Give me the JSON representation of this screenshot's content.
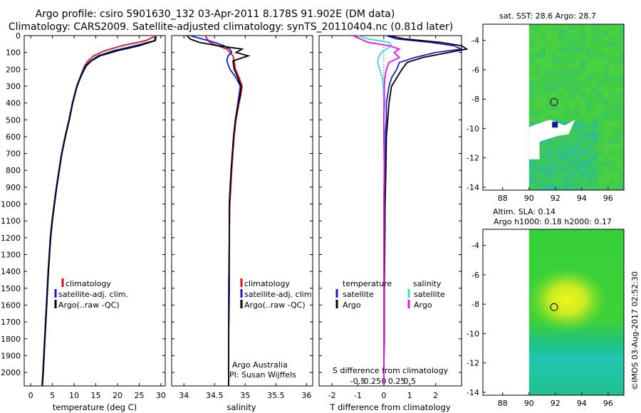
{
  "header": {
    "title_line1": "Argo profile: csiro 5901630_132 03-Apr-2011 8.178S 91.902E (DM data)",
    "title_line2": "Climatology: CARS2009. Satellite-adjusted climatology: synTS_20110404.nc (0.81d later)",
    "timestamp": "©IMOS 03-Aug-2017 02:52:30"
  },
  "colors": {
    "climatology": "#dd1111",
    "satellite": "#1a1ad6",
    "argo": "#000000",
    "argo_salinity_diff": "#ee11ee",
    "satellite_salinity_diff": "#33dddd"
  },
  "chart_data": [
    {
      "type": "line",
      "id": "temperature",
      "xlabel": "temperature (deg C)",
      "xlim": [
        -1.5,
        31
      ],
      "ylim": [
        2080,
        0
      ],
      "xticks": [
        0,
        5,
        10,
        15,
        20,
        25,
        30
      ],
      "yticks": [
        0,
        100,
        200,
        300,
        400,
        500,
        600,
        700,
        800,
        900,
        1000,
        1100,
        1200,
        1300,
        1400,
        1500,
        1600,
        1700,
        1800,
        1900,
        2000
      ],
      "depth": [
        5,
        30,
        60,
        90,
        120,
        150,
        180,
        220,
        260,
        300,
        400,
        500,
        600,
        700,
        800,
        900,
        1000,
        1100,
        1200,
        1400,
        1600,
        1800,
        2000,
        2080
      ],
      "legend": [
        "climatology",
        "satellite-adj. clim.",
        "Argo(..raw -QC)"
      ],
      "series": [
        {
          "name": "climatology",
          "color": "climatology",
          "values": [
            28.6,
            26.5,
            21,
            17,
            14.5,
            13.2,
            12.4,
            11.8,
            11.2,
            10.6,
            9.6,
            8.8,
            7.9,
            7.1,
            6.5,
            5.9,
            5.4,
            4.9,
            4.5,
            4.0,
            3.6,
            3.2,
            2.8,
            2.6
          ]
        },
        {
          "name": "satellite-adj. clim.",
          "color": "satellite",
          "values": [
            28.8,
            28.5,
            24,
            19,
            15.5,
            13.8,
            12.6,
            11.8,
            11.2,
            10.6,
            9.6,
            8.8,
            7.9,
            7.1,
            6.5,
            5.9,
            5.4,
            4.9,
            4.5,
            4.0,
            3.6,
            3.2,
            2.8,
            2.6
          ]
        },
        {
          "name": "Argo(..raw -QC)",
          "color": "argo",
          "values": [
            28.9,
            28.7,
            25,
            20,
            16,
            14,
            12.8,
            12,
            11.3,
            10.7,
            9.7,
            8.9,
            8.0,
            7.2,
            6.6,
            6.0,
            5.5,
            5.0,
            4.6,
            4.1,
            3.7,
            3.3,
            2.9,
            2.7
          ]
        }
      ]
    },
    {
      "type": "line",
      "id": "salinity",
      "xlabel": "salinity",
      "xlim": [
        33.8,
        36.1
      ],
      "ylim": [
        2080,
        0
      ],
      "xticks": [
        34,
        34.5,
        35,
        35.5,
        36
      ],
      "depth": [
        0,
        20,
        40,
        60,
        80,
        100,
        120,
        150,
        200,
        250,
        300,
        350,
        400,
        500,
        600,
        800,
        1000,
        1200,
        1500,
        1800,
        2080
      ],
      "legend": [
        "climatology",
        "satellite-adj. clim.",
        "Argo(..raw -QC)"
      ],
      "annotation": [
        "Argo Australia",
        "PI: Susan Wijffels"
      ],
      "series": [
        {
          "name": "climatology",
          "color": "climatology",
          "values": [
            34.35,
            34.38,
            34.42,
            34.55,
            34.7,
            34.75,
            34.8,
            34.82,
            34.84,
            34.9,
            34.95,
            34.93,
            34.9,
            34.85,
            34.82,
            34.78,
            34.75,
            34.74,
            34.73,
            34.73,
            34.73
          ]
        },
        {
          "name": "satellite-adj. clim.",
          "color": "satellite",
          "values": [
            34.1,
            34.3,
            34.5,
            34.65,
            34.75,
            34.78,
            34.72,
            34.7,
            34.75,
            34.85,
            34.92,
            34.9,
            34.88,
            34.84,
            34.81,
            34.77,
            34.74,
            34.74,
            34.73,
            34.73,
            34.73
          ]
        },
        {
          "name": "Argo(..raw -QC)",
          "color": "argo",
          "values": [
            34.05,
            34.1,
            34.25,
            34.55,
            34.95,
            34.85,
            35.05,
            34.8,
            34.82,
            34.88,
            34.93,
            34.92,
            34.89,
            34.84,
            34.81,
            34.77,
            34.74,
            34.74,
            34.74,
            34.73,
            34.73
          ]
        }
      ]
    },
    {
      "type": "line",
      "id": "differences",
      "xlabel": "T difference from climatology",
      "top_xlabel": "S difference from climatology",
      "xlim": [
        -2.5,
        3
      ],
      "ylim": [
        2080,
        0
      ],
      "xticks": [
        -2,
        -1,
        0,
        1,
        2
      ],
      "top_ticks": [
        -0.5,
        -0.25,
        0,
        0.25,
        0.5
      ],
      "top_tick_labels": [
        "-0.5",
        "-0.25",
        "0",
        "0.25",
        "0.5"
      ],
      "depth": [
        0,
        20,
        40,
        60,
        80,
        100,
        130,
        160,
        200,
        250,
        300,
        400,
        500,
        600,
        800,
        1000,
        1200,
        1500,
        1800,
        2000,
        2080
      ],
      "legend_left_title": "temperature",
      "legend_right_title": "salinity",
      "legend": [
        "satellite",
        "Argo"
      ],
      "series": [
        {
          "name": "temperature satellite",
          "color": "satellite",
          "values": [
            0.1,
            0.5,
            1.8,
            2.7,
            3.0,
            2.0,
            1.2,
            0.6,
            0.5,
            0.3,
            0.2,
            0.1,
            0.1,
            0.05,
            0.05,
            0.02,
            0.02,
            0.01,
            0.01,
            0.0,
            0.0
          ]
        },
        {
          "name": "temperature Argo",
          "color": "argo",
          "values": [
            0.2,
            0.8,
            2.2,
            3.0,
            3.2,
            2.5,
            1.5,
            0.9,
            0.7,
            0.5,
            0.3,
            0.2,
            0.15,
            0.1,
            0.08,
            0.05,
            0.04,
            0.02,
            0.02,
            0.0,
            0.0
          ]
        },
        {
          "name": "salinity satellite",
          "color": "satellite_salinity_diff",
          "values": [
            -0.5,
            -0.3,
            0.1,
            0.15,
            0.05,
            -0.05,
            -0.1,
            -0.12,
            -0.08,
            -0.03,
            -0.01,
            0.0,
            0.0,
            0.01,
            0.01,
            0.0,
            0.0,
            0.0,
            0.0,
            0.0,
            0.0
          ]
        },
        {
          "name": "salinity Argo",
          "color": "argo_salinity_diff",
          "values": [
            -0.6,
            -0.45,
            -0.3,
            0.1,
            0.3,
            0.2,
            0.3,
            0.1,
            0.05,
            0.02,
            0.01,
            0.01,
            0.0,
            0.0,
            0.01,
            0.0,
            0.0,
            0.0,
            0.0,
            0.0,
            0.0
          ]
        }
      ]
    },
    {
      "type": "heatmap",
      "id": "sst-map",
      "title": "sat. SST: 28.6 Argo: 28.7",
      "xlim": [
        86.5,
        97.2
      ],
      "ylim": [
        -14.2,
        -2.9
      ],
      "xticks": [
        88,
        90,
        92,
        94,
        96
      ],
      "yticks": [
        -4,
        -6,
        -8,
        -10,
        -12,
        -14
      ],
      "marker": {
        "lon": 91.9,
        "lat": -8.2
      },
      "data_start_lon": 90
    },
    {
      "type": "heatmap",
      "id": "sla-map",
      "title_line1": "Altim. SLA: 0.14",
      "title_line2": "Argo h1000: 0.18 h2000: 0.17",
      "xlim": [
        86.5,
        97.2
      ],
      "ylim": [
        -14.2,
        -2.9
      ],
      "xticks": [
        88,
        90,
        92,
        94,
        96
      ],
      "yticks": [
        -4,
        -6,
        -8,
        -10,
        -12,
        -14
      ],
      "marker": {
        "lon": 91.9,
        "lat": -8.2
      },
      "data_start_lon": 90
    }
  ]
}
